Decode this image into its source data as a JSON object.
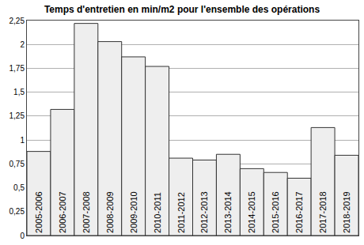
{
  "chart_data": {
    "type": "bar",
    "title": "Temps d'entretien en min/m2 pour l'ensemble des opérations",
    "categories": [
      "2005-2006",
      "2006-2007",
      "2007-2008",
      "2008-2009",
      "2009-2010",
      "2010-2011",
      "2011-2012",
      "2012-2013",
      "2013-2014",
      "2014-2015",
      "2015-2016",
      "2016-2017",
      "2017-2018",
      "2018-2019"
    ],
    "values": [
      0.88,
      1.32,
      2.22,
      2.03,
      1.87,
      1.77,
      0.81,
      0.79,
      0.85,
      0.7,
      0.66,
      0.6,
      1.13,
      0.84
    ],
    "color": "#eeeeee",
    "ylim": [
      0,
      2.25
    ],
    "yticks": [
      0,
      {
        "value": 0.25,
        "label": "0,25"
      },
      {
        "value": 0.5,
        "label": "0,5"
      },
      {
        "value": 0.75,
        "label": "0,75"
      },
      1,
      {
        "value": 1.25,
        "label": "1,25"
      },
      {
        "value": 1.5,
        "label": "1,5"
      },
      {
        "value": 1.75,
        "label": "1,75"
      },
      2,
      {
        "value": 2.25,
        "label": "2,25"
      }
    ],
    "grid": true,
    "tick_labels": "y"
  }
}
